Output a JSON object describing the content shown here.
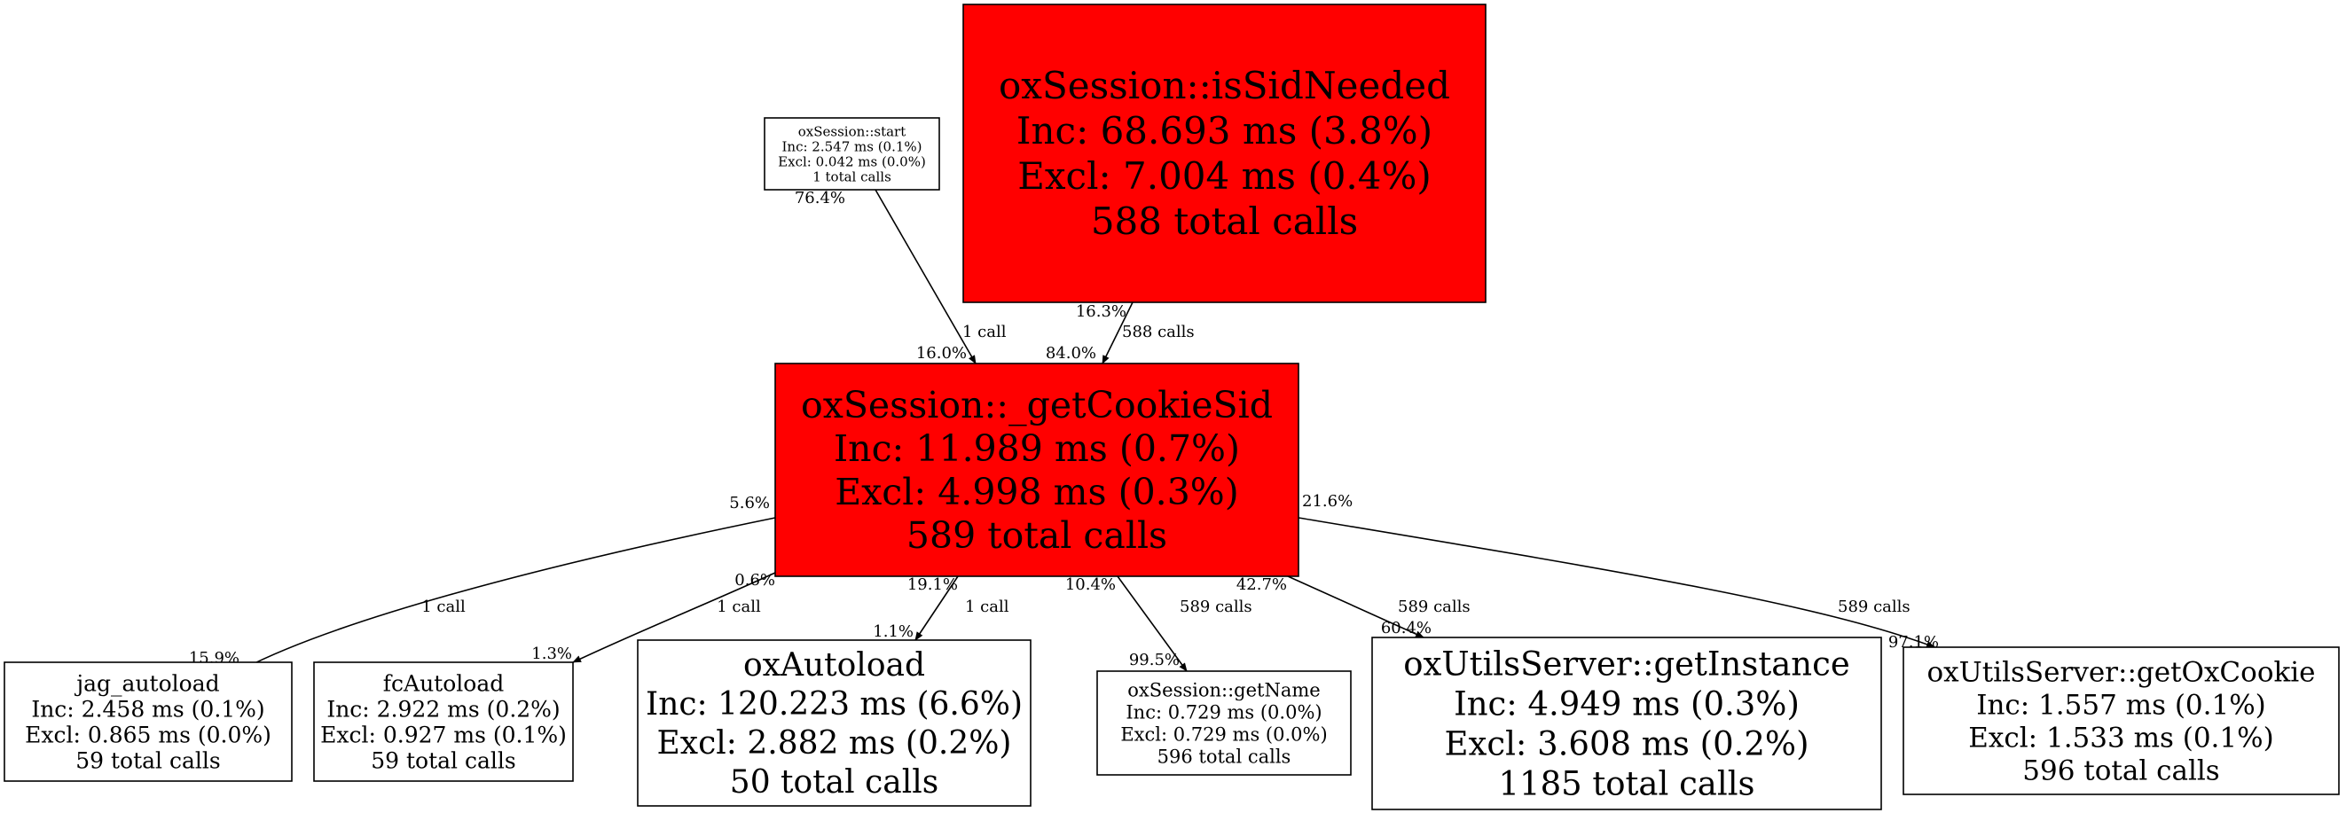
{
  "colors": {
    "hot": "#ff0000",
    "normal": "#ffffff",
    "stroke": "#000000"
  },
  "nodes": [
    {
      "id": "start",
      "lines": [
        "oxSession::start",
        "Inc: 2.547 ms (0.1%)",
        "Excl: 0.042 ms (0.0%)",
        "1 total calls"
      ],
      "hot": false
    },
    {
      "id": "isSidNeeded",
      "lines": [
        "oxSession::isSidNeeded",
        "Inc: 68.693 ms (3.8%)",
        "Excl: 7.004 ms (0.4%)",
        "588 total calls"
      ],
      "hot": true
    },
    {
      "id": "getCookieSid",
      "lines": [
        "oxSession::_getCookieSid",
        "Inc: 11.989 ms (0.7%)",
        "Excl: 4.998 ms (0.3%)",
        "589 total calls"
      ],
      "hot": true
    },
    {
      "id": "jag_autoload",
      "lines": [
        "jag_autoload",
        "Inc: 2.458 ms (0.1%)",
        "Excl: 0.865 ms (0.0%)",
        "59 total calls"
      ],
      "hot": false
    },
    {
      "id": "fcAutoload",
      "lines": [
        "fcAutoload",
        "Inc: 2.922 ms (0.2%)",
        "Excl: 0.927 ms (0.1%)",
        "59 total calls"
      ],
      "hot": false
    },
    {
      "id": "oxAutoload",
      "lines": [
        "oxAutoload",
        "Inc: 120.223 ms (6.6%)",
        "Excl: 2.882 ms (0.2%)",
        "50 total calls"
      ],
      "hot": false
    },
    {
      "id": "getName",
      "lines": [
        "oxSession::getName",
        "Inc: 0.729 ms (0.0%)",
        "Excl: 0.729 ms (0.0%)",
        "596 total calls"
      ],
      "hot": false
    },
    {
      "id": "getInstance",
      "lines": [
        "oxUtilsServer::getInstance",
        "Inc: 4.949 ms (0.3%)",
        "Excl: 3.608 ms (0.2%)",
        "1185 total calls"
      ],
      "hot": false
    },
    {
      "id": "getOxCookie",
      "lines": [
        "oxUtilsServer::getOxCookie",
        "Inc: 1.557 ms (0.1%)",
        "Excl: 1.533 ms (0.1%)",
        "596 total calls"
      ],
      "hot": false
    }
  ],
  "edges": [
    {
      "from": "start",
      "to": "getCookieSid",
      "tail": "76.4%",
      "calls": "1 call",
      "head": "16.0%"
    },
    {
      "from": "isSidNeeded",
      "to": "getCookieSid",
      "tail": "16.3%",
      "calls": "588 calls",
      "head": "84.0%"
    },
    {
      "from": "getCookieSid",
      "to": "jag_autoload",
      "tail": "5.6%",
      "calls": "1 call",
      "head": "15.9%"
    },
    {
      "from": "getCookieSid",
      "to": "fcAutoload",
      "tail": "0.6%",
      "calls": "1 call",
      "head": "1.3%"
    },
    {
      "from": "getCookieSid",
      "to": "oxAutoload",
      "tail": "19.1%",
      "calls": "1 call",
      "head": "1.1%"
    },
    {
      "from": "getCookieSid",
      "to": "getName",
      "tail": "10.4%",
      "calls": "589 calls",
      "head": "99.5%"
    },
    {
      "from": "getCookieSid",
      "to": "getInstance",
      "tail": "42.7%",
      "calls": "589 calls",
      "head": "60.4%"
    },
    {
      "from": "getCookieSid",
      "to": "getOxCookie",
      "tail": "21.6%",
      "calls": "589 calls",
      "head": "97.1%"
    }
  ]
}
